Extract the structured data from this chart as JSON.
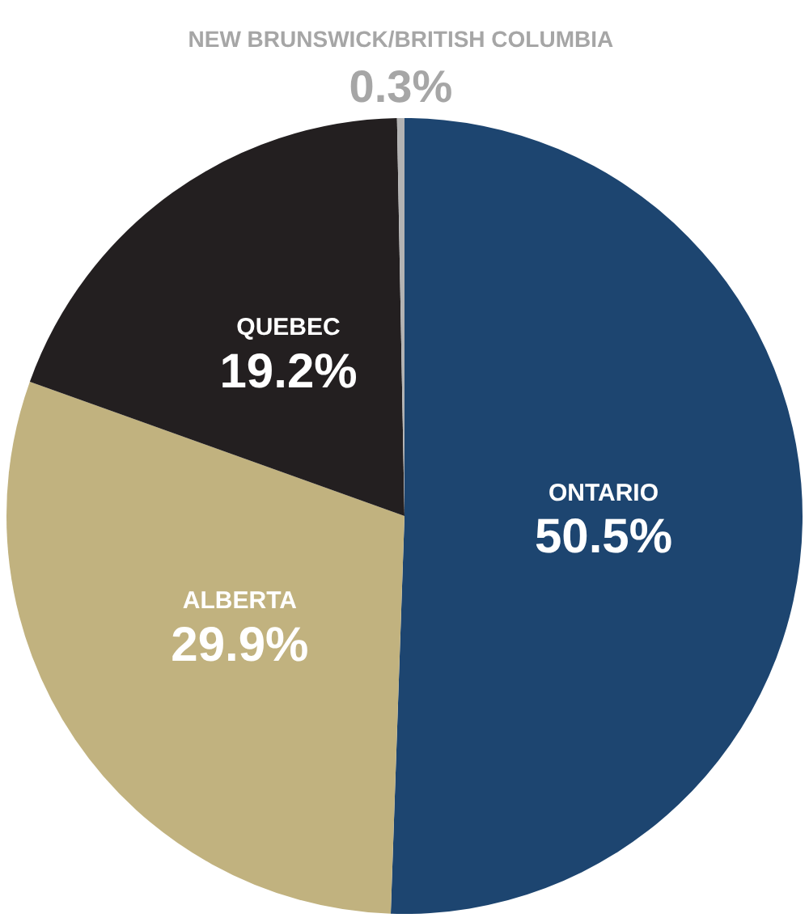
{
  "chart_data": {
    "type": "pie",
    "categories": [
      "ONTARIO",
      "ALBERTA",
      "QUEBEC",
      "NEW BRUNSWICK/BRITISH COLUMBIA"
    ],
    "values": [
      50.5,
      29.9,
      19.2,
      0.3
    ],
    "value_labels": [
      "50.5%",
      "29.9%",
      "19.2%",
      "0.3%"
    ],
    "colors": [
      "#1d4570",
      "#c1b27f",
      "#231f20",
      "#b3b3b3"
    ],
    "legend": false
  }
}
